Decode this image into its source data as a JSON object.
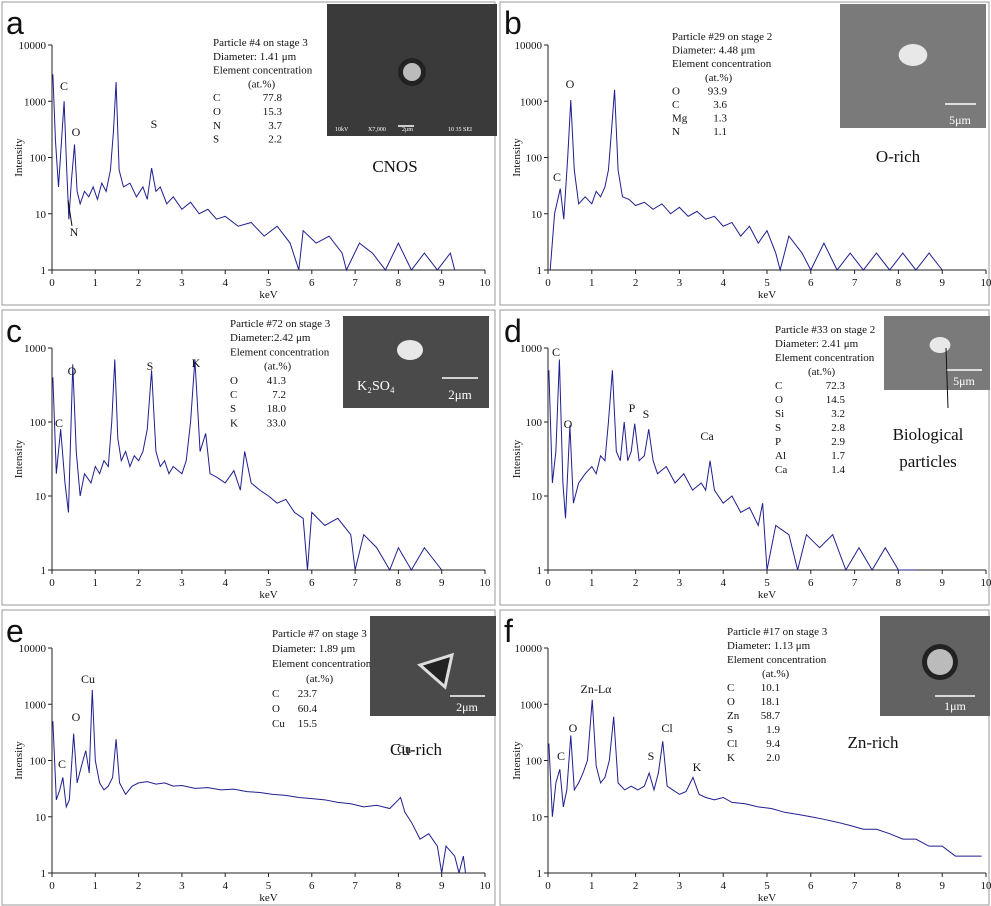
{
  "chart_data": [
    {
      "type": "line",
      "label": "a",
      "xlabel": "keV",
      "ylabel": "Intensity",
      "log_y": true,
      "color": "#1f1f8f",
      "xlim": [
        0,
        10
      ],
      "ylim": [
        1,
        10000
      ],
      "xticks": [
        0,
        1,
        2,
        3,
        4,
        5,
        6,
        7,
        8,
        9,
        10
      ],
      "yticks": [
        1,
        10,
        100,
        1000,
        10000
      ],
      "x": [
        0.02,
        0.08,
        0.15,
        0.22,
        0.28,
        0.34,
        0.39,
        0.45,
        0.52,
        0.58,
        0.65,
        0.75,
        0.85,
        0.95,
        1.05,
        1.15,
        1.25,
        1.35,
        1.42,
        1.48,
        1.55,
        1.65,
        1.8,
        1.95,
        2.1,
        2.2,
        2.3,
        2.4,
        2.5,
        2.65,
        2.8,
        3.0,
        3.2,
        3.4,
        3.6,
        3.8,
        4.0,
        4.3,
        4.6,
        4.9,
        5.2,
        5.5,
        5.7,
        5.8,
        6.1,
        6.4,
        6.7,
        6.8,
        7.1,
        7.4,
        7.7,
        8.0,
        8.3,
        8.6,
        8.9,
        9.2,
        9.3
      ],
      "values": [
        3000,
        200,
        30,
        200,
        1000,
        60,
        8,
        40,
        170,
        25,
        15,
        25,
        20,
        30,
        18,
        35,
        25,
        60,
        300,
        2200,
        60,
        30,
        35,
        20,
        30,
        18,
        65,
        25,
        30,
        15,
        20,
        12,
        16,
        10,
        12,
        8,
        9,
        6,
        7,
        4,
        6,
        3,
        1,
        5,
        3,
        4,
        2,
        1,
        3,
        2,
        1,
        3,
        1,
        2,
        1,
        2,
        1
      ],
      "annotations": [
        "C",
        "O",
        "S",
        "N"
      ],
      "note": "CNOS",
      "info": {
        "lines": [
          "Particle #4 on stage 3",
          "Diameter: 1.41 μm",
          "Element concentration",
          "(at.%)"
        ],
        "rows": [
          [
            "C",
            "77.8"
          ],
          [
            "O",
            "15.3"
          ],
          [
            "N",
            "3.7"
          ],
          [
            "S",
            "2.2"
          ]
        ]
      },
      "inset_texts": [
        "10kV",
        "X7,000",
        "2μm",
        "10 35 SEI"
      ]
    },
    {
      "type": "line",
      "label": "b",
      "xlabel": "keV",
      "ylabel": "Intensity",
      "log_y": true,
      "color": "#1f1f8f",
      "xlim": [
        0,
        10
      ],
      "ylim": [
        1,
        10000
      ],
      "xticks": [
        0,
        1,
        2,
        3,
        4,
        5,
        6,
        7,
        8,
        9,
        10
      ],
      "yticks": [
        1,
        10,
        100,
        1000,
        10000
      ],
      "x": [
        0.05,
        0.15,
        0.28,
        0.36,
        0.45,
        0.52,
        0.6,
        0.7,
        0.85,
        1.0,
        1.1,
        1.2,
        1.3,
        1.38,
        1.45,
        1.52,
        1.6,
        1.7,
        1.85,
        2.0,
        2.2,
        2.4,
        2.6,
        2.8,
        3.0,
        3.2,
        3.4,
        3.6,
        3.8,
        4.0,
        4.2,
        4.4,
        4.6,
        4.8,
        5.0,
        5.2,
        5.3,
        5.5,
        5.8,
        6.0,
        6.3,
        6.6,
        6.9,
        7.2,
        7.5,
        7.8,
        8.1,
        8.4,
        8.7,
        9.0
      ],
      "values": [
        1,
        10,
        28,
        8,
        100,
        1050,
        60,
        15,
        20,
        15,
        25,
        20,
        30,
        60,
        300,
        1600,
        60,
        20,
        18,
        14,
        16,
        12,
        15,
        10,
        13,
        9,
        11,
        8,
        9,
        6,
        7,
        4,
        6,
        3,
        5,
        2,
        1,
        4,
        2,
        1,
        3,
        1,
        2,
        1,
        2,
        1,
        2,
        1,
        2,
        1
      ],
      "annotations": [
        "O",
        "C"
      ],
      "note": "O-rich",
      "info": {
        "lines": [
          "Particle #29 on stage 2",
          "Diameter: 4.48 μm",
          "Element concentration",
          "(at.%)"
        ],
        "rows": [
          [
            "O",
            "93.9"
          ],
          [
            "C",
            "3.6"
          ],
          [
            "Mg",
            "1.3"
          ],
          [
            "N",
            "1.1"
          ]
        ]
      },
      "inset_texts": [
        "5μm"
      ]
    },
    {
      "type": "line",
      "label": "c",
      "xlabel": "keV",
      "ylabel": "Intensity",
      "log_y": true,
      "color": "#1f1f8f",
      "xlim": [
        0,
        10
      ],
      "ylim": [
        1,
        1000
      ],
      "xticks": [
        0,
        1,
        2,
        3,
        4,
        5,
        6,
        7,
        8,
        9,
        10
      ],
      "yticks": [
        1,
        10,
        100,
        1000
      ],
      "x": [
        0.02,
        0.1,
        0.2,
        0.3,
        0.38,
        0.48,
        0.56,
        0.65,
        0.75,
        0.9,
        1.0,
        1.1,
        1.2,
        1.3,
        1.38,
        1.45,
        1.52,
        1.6,
        1.7,
        1.8,
        1.9,
        2.0,
        2.1,
        2.2,
        2.3,
        2.4,
        2.5,
        2.6,
        2.7,
        2.8,
        3.0,
        3.1,
        3.2,
        3.3,
        3.42,
        3.55,
        3.65,
        3.8,
        4.0,
        4.2,
        4.35,
        4.45,
        4.6,
        4.8,
        5.0,
        5.2,
        5.4,
        5.6,
        5.8,
        5.9,
        6.0,
        6.3,
        6.6,
        6.9,
        7.0,
        7.2,
        7.5,
        7.8,
        8.0,
        8.3,
        8.6,
        9.0
      ],
      "values": [
        400,
        20,
        80,
        15,
        6,
        600,
        40,
        10,
        20,
        15,
        25,
        20,
        30,
        25,
        100,
        700,
        60,
        30,
        40,
        25,
        35,
        30,
        40,
        80,
        500,
        40,
        25,
        30,
        20,
        25,
        20,
        30,
        100,
        700,
        40,
        70,
        20,
        18,
        15,
        22,
        12,
        40,
        15,
        12,
        10,
        8,
        9,
        6,
        5,
        1,
        6,
        4,
        5,
        3,
        1,
        3,
        2,
        1,
        2,
        1,
        2,
        1
      ],
      "annotations": [
        "O",
        "S",
        "K",
        "C"
      ],
      "info": {
        "lines": [
          "Particle #72 on stage 3",
          "Diameter:2.42 μm",
          "Element concentration",
          "(at.%)"
        ],
        "rows": [
          [
            "O",
            "41.3"
          ],
          [
            "C",
            "7.2"
          ],
          [
            "S",
            "18.0"
          ],
          [
            "K",
            "33.0"
          ]
        ]
      },
      "inset_texts": [
        "K₂SO₄",
        "2μm"
      ]
    },
    {
      "type": "line",
      "label": "d",
      "xlabel": "keV",
      "ylabel": "Intensity",
      "log_y": true,
      "color": "#1f1f8f",
      "xlim": [
        0,
        10
      ],
      "ylim": [
        1,
        1000
      ],
      "xticks": [
        0,
        1,
        2,
        3,
        4,
        5,
        6,
        7,
        8,
        9,
        10
      ],
      "yticks": [
        1,
        10,
        100,
        1000
      ],
      "x": [
        0.02,
        0.1,
        0.18,
        0.26,
        0.34,
        0.4,
        0.5,
        0.58,
        0.7,
        0.85,
        1.0,
        1.1,
        1.2,
        1.3,
        1.38,
        1.47,
        1.56,
        1.65,
        1.74,
        1.82,
        1.9,
        1.98,
        2.08,
        2.2,
        2.3,
        2.4,
        2.5,
        2.7,
        2.9,
        3.1,
        3.3,
        3.5,
        3.6,
        3.7,
        3.8,
        4.0,
        4.2,
        4.4,
        4.6,
        4.8,
        4.9,
        5.0,
        5.2,
        5.5,
        5.7,
        5.9,
        6.2,
        6.5,
        6.8,
        7.1,
        7.4,
        7.7,
        8.0,
        8.4
      ],
      "values": [
        500,
        15,
        40,
        700,
        15,
        5,
        90,
        8,
        15,
        20,
        25,
        20,
        35,
        30,
        100,
        500,
        40,
        30,
        100,
        30,
        40,
        95,
        30,
        35,
        80,
        30,
        20,
        25,
        15,
        20,
        12,
        15,
        12,
        30,
        12,
        8,
        10,
        6,
        7,
        4,
        8,
        1,
        4,
        3,
        1,
        3,
        2,
        3,
        1,
        2,
        1,
        2,
        1,
        1
      ],
      "annotations": [
        "C",
        "O",
        "P",
        "S",
        "Ca"
      ],
      "callout": [
        "Biological",
        "particles"
      ],
      "info": {
        "lines": [
          "Particle #33 on stage 2",
          "Diameter: 2.41 μm",
          "Element concentration",
          "(at.%)"
        ],
        "rows": [
          [
            "C",
            "72.3"
          ],
          [
            "O",
            "14.5"
          ],
          [
            "Si",
            "3.2"
          ],
          [
            "S",
            "2.8"
          ],
          [
            "P",
            "2.9"
          ],
          [
            "Al",
            "1.7"
          ],
          [
            "Ca",
            "1.4"
          ]
        ]
      },
      "inset_texts": [
        "5μm"
      ]
    },
    {
      "type": "line",
      "label": "e",
      "xlabel": "keV",
      "ylabel": "Intensity",
      "log_y": true,
      "color": "#1f1f8f",
      "xlim": [
        0,
        10
      ],
      "ylim": [
        1,
        10000
      ],
      "xticks": [
        0,
        1,
        2,
        3,
        4,
        5,
        6,
        7,
        8,
        9,
        10
      ],
      "yticks": [
        1,
        10,
        100,
        1000,
        10000
      ],
      "x": [
        0.02,
        0.1,
        0.18,
        0.25,
        0.33,
        0.4,
        0.5,
        0.58,
        0.68,
        0.78,
        0.86,
        0.93,
        1.0,
        1.1,
        1.2,
        1.3,
        1.4,
        1.48,
        1.56,
        1.7,
        1.85,
        2.0,
        2.2,
        2.4,
        2.6,
        2.8,
        3.0,
        3.3,
        3.6,
        3.9,
        4.2,
        4.5,
        4.8,
        5.1,
        5.4,
        5.7,
        6.0,
        6.3,
        6.6,
        6.9,
        7.2,
        7.5,
        7.8,
        8.0,
        8.05,
        8.15,
        8.3,
        8.5,
        8.7,
        8.9,
        9.0,
        9.1,
        9.3,
        9.4,
        9.5,
        9.55
      ],
      "values": [
        500,
        20,
        30,
        50,
        15,
        20,
        300,
        40,
        80,
        150,
        60,
        1800,
        100,
        40,
        30,
        35,
        50,
        240,
        40,
        25,
        35,
        40,
        42,
        38,
        40,
        35,
        36,
        32,
        33,
        30,
        31,
        28,
        27,
        25,
        24,
        22,
        21,
        20,
        18,
        17,
        15,
        16,
        14,
        20,
        22,
        12,
        8,
        4,
        5,
        3,
        1,
        3,
        2,
        1,
        2,
        1
      ],
      "annotations": [
        "Cu",
        "O",
        "C",
        "Cu"
      ],
      "note": "Cu-rich",
      "info": {
        "lines": [
          "Particle #7 on stage 3",
          "Diameter: 1.89 μm",
          "Element concentration",
          "(at.%)"
        ],
        "rows": [
          [
            "C",
            "23.7"
          ],
          [
            "O",
            "60.4"
          ],
          [
            "Cu",
            "15.5"
          ]
        ]
      },
      "inset_texts": [
        "2μm"
      ]
    },
    {
      "type": "line",
      "label": "f",
      "xlabel": "keV",
      "ylabel": "Intensity",
      "log_y": true,
      "color": "#1f1f8f",
      "xlim": [
        0,
        10
      ],
      "ylim": [
        1,
        10000
      ],
      "xticks": [
        0,
        1,
        2,
        3,
        4,
        5,
        6,
        7,
        8,
        9,
        10
      ],
      "yticks": [
        1,
        10,
        100,
        1000,
        10000
      ],
      "x": [
        0.02,
        0.1,
        0.18,
        0.27,
        0.35,
        0.43,
        0.52,
        0.6,
        0.7,
        0.8,
        0.9,
        1.01,
        1.1,
        1.2,
        1.3,
        1.4,
        1.5,
        1.6,
        1.75,
        1.9,
        2.05,
        2.2,
        2.31,
        2.42,
        2.52,
        2.62,
        2.72,
        2.85,
        3.0,
        3.15,
        3.31,
        3.45,
        3.6,
        3.8,
        4.0,
        4.2,
        4.5,
        4.8,
        5.1,
        5.4,
        5.7,
        6.0,
        6.3,
        6.6,
        6.9,
        7.2,
        7.5,
        7.8,
        8.1,
        8.4,
        8.7,
        9.0,
        9.3,
        9.6,
        9.9
      ],
      "values": [
        200,
        10,
        40,
        70,
        15,
        30,
        280,
        30,
        40,
        60,
        100,
        1200,
        80,
        40,
        50,
        100,
        600,
        40,
        30,
        35,
        30,
        35,
        60,
        30,
        60,
        220,
        35,
        30,
        25,
        28,
        50,
        25,
        22,
        20,
        22,
        18,
        17,
        15,
        14,
        12,
        11,
        10,
        9,
        8,
        7,
        6,
        6,
        5,
        4,
        4,
        3,
        3,
        2,
        2,
        2
      ],
      "annotations": [
        "Zn-Lα",
        "O",
        "Cl",
        "C",
        "S",
        "K"
      ],
      "note": "Zn-rich",
      "info": {
        "lines": [
          "Particle #17 on stage 3",
          "Diameter: 1.13 μm",
          "Element concentration",
          "(at.%)"
        ],
        "rows": [
          [
            "C",
            "10.1"
          ],
          [
            "O",
            "18.1"
          ],
          [
            "Zn",
            "58.7"
          ],
          [
            "S",
            "1.9"
          ],
          [
            "Cl",
            "9.4"
          ],
          [
            "K",
            "2.0"
          ]
        ]
      },
      "inset_texts": [
        "1μm"
      ]
    }
  ]
}
